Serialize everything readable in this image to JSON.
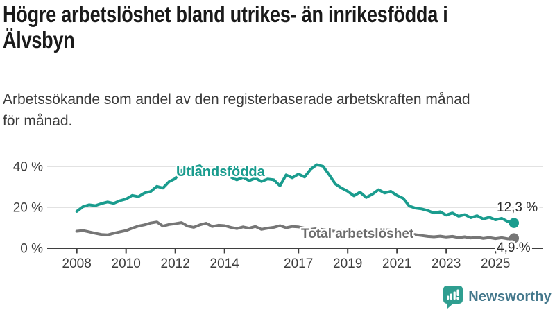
{
  "header": {
    "title_lines": [
      "Högre arbetslöshet bland utrikes- än inrikesfödda i",
      "Älvsbyn"
    ],
    "subtitle_lines": [
      "Arbetssökande som andel av den registerbaserade arbetskraften månad",
      "för månad."
    ]
  },
  "chart_data": {
    "type": "line",
    "title": "Högre arbetslöshet bland utrikes- än inrikesfödda i Älvsbyn",
    "subtitle": "Arbetssökande som andel av den registerbaserade arbetskraften månad för månad.",
    "xlabel": "",
    "ylabel": "",
    "unit": "%",
    "grid": true,
    "legend_position": "inline-labels",
    "x_start": 2008,
    "x_step": 0.25,
    "xlim": [
      2007.8,
      2026.2
    ],
    "ylim": [
      0,
      44
    ],
    "x_ticks": [
      {
        "year": 2008,
        "label": "2008"
      },
      {
        "year": 2010,
        "label": "2010"
      },
      {
        "year": 2012,
        "label": "2012"
      },
      {
        "year": 2014,
        "label": "2014"
      },
      {
        "year": 2017,
        "label": "2017"
      },
      {
        "year": 2019,
        "label": "2019"
      },
      {
        "year": 2021,
        "label": "2021"
      },
      {
        "year": 2023,
        "label": "2023"
      },
      {
        "year": 2025,
        "label": "2025"
      }
    ],
    "y_ticks": [
      {
        "value": 0,
        "label": "0 %"
      },
      {
        "value": 20,
        "label": "20 %"
      },
      {
        "value": 40,
        "label": "40 %"
      }
    ],
    "series": [
      {
        "name": "Total arbetslöshet",
        "color": "#767676",
        "label_color": "#6b6b6b",
        "end_label": "4,9 %",
        "end_value": 4.9,
        "values": [
          8.3,
          8.6,
          8.0,
          7.3,
          6.7,
          6.5,
          7.3,
          8.0,
          8.6,
          9.8,
          10.8,
          11.4,
          12.3,
          12.8,
          10.8,
          11.6,
          12.0,
          12.5,
          10.8,
          10.2,
          11.4,
          12.2,
          10.6,
          11.2,
          11.0,
          10.2,
          9.6,
          10.4,
          9.8,
          10.6,
          9.2,
          9.8,
          10.2,
          11.0,
          10.0,
          10.6,
          10.4,
          9.8,
          9.2,
          9.6,
          9.0,
          8.6,
          8.2,
          8.6,
          8.4,
          8.0,
          8.4,
          8.2,
          8.6,
          9.4,
          9.0,
          8.8,
          8.4,
          8.0,
          7.2,
          6.6,
          6.2,
          5.8,
          5.6,
          5.9,
          5.5,
          5.8,
          5.2,
          5.6,
          5.0,
          5.4,
          4.8,
          5.2,
          4.7,
          5.1,
          4.6,
          4.9
        ]
      },
      {
        "name": "Utlandsfödda",
        "color": "#1a9c8e",
        "label_color": "#1a9c8e",
        "end_label": "12,3 %",
        "end_value": 12.3,
        "values": [
          18.0,
          20.3,
          21.2,
          20.8,
          21.8,
          22.6,
          21.9,
          23.2,
          24.0,
          25.8,
          25.2,
          27.0,
          27.7,
          30.2,
          29.4,
          32.5,
          34.0,
          38.0,
          37.0,
          39.5,
          40.3,
          36.5,
          37.8,
          36.2,
          37.2,
          34.8,
          33.4,
          34.6,
          33.0,
          34.2,
          32.6,
          33.8,
          33.4,
          30.5,
          35.8,
          34.4,
          36.2,
          34.8,
          38.6,
          40.8,
          40.0,
          35.8,
          31.4,
          29.4,
          27.8,
          25.6,
          27.4,
          24.8,
          26.4,
          28.6,
          27.0,
          27.8,
          25.8,
          24.4,
          20.6,
          19.6,
          19.2,
          18.4,
          17.2,
          17.8,
          16.2,
          17.2,
          15.6,
          16.4,
          14.9,
          15.9,
          14.3,
          15.1,
          13.9,
          14.6,
          13.0,
          12.3
        ]
      }
    ]
  },
  "colors": {
    "accent_teal": "#1a9c8e",
    "line_gray": "#767676",
    "gridline": "#d9d9d9",
    "axis": "#3f3f3f",
    "axis_text": "#3d3d3d",
    "value_label_text": "#2d2d2d",
    "logo_icon": "#2f9e90",
    "logo_text": "#44788c"
  },
  "footer": {
    "brand": "Newsworthy",
    "icon": "newsworthy-speech-bubble-bar-chart-icon"
  }
}
